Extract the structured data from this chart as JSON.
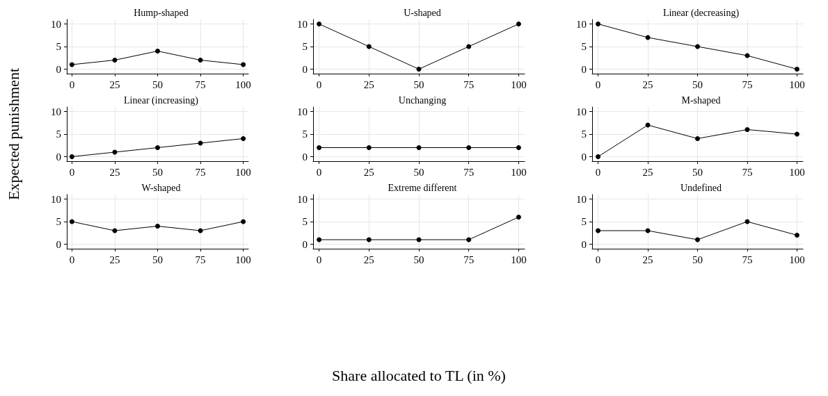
{
  "chart_data": [
    {
      "type": "line",
      "title": "Hump-shaped",
      "x": [
        0,
        25,
        50,
        75,
        100
      ],
      "values": [
        1,
        2,
        4,
        2,
        1
      ],
      "color": "#000000",
      "xlim": [
        -3,
        103
      ],
      "ylim": [
        -1,
        11
      ],
      "xticks": [
        0,
        25,
        50,
        75,
        100
      ],
      "yticks": [
        0,
        5,
        10
      ],
      "grid": true,
      "marker": "circle",
      "line_style": "solid"
    },
    {
      "type": "line",
      "title": "U-shaped",
      "x": [
        0,
        25,
        50,
        75,
        100
      ],
      "values": [
        10,
        5,
        0,
        5,
        10
      ],
      "color": "#000000",
      "xlim": [
        -3,
        103
      ],
      "ylim": [
        -1,
        11
      ],
      "xticks": [
        0,
        25,
        50,
        75,
        100
      ],
      "yticks": [
        0,
        5,
        10
      ],
      "grid": true,
      "marker": "circle",
      "line_style": "solid"
    },
    {
      "type": "line",
      "title": "Linear (decreasing)",
      "x": [
        0,
        25,
        50,
        75,
        100
      ],
      "values": [
        10,
        7,
        5,
        3,
        0
      ],
      "color": "#000000",
      "xlim": [
        -3,
        103
      ],
      "ylim": [
        -1,
        11
      ],
      "xticks": [
        0,
        25,
        50,
        75,
        100
      ],
      "yticks": [
        0,
        5,
        10
      ],
      "grid": true,
      "marker": "circle",
      "line_style": "solid"
    },
    {
      "type": "line",
      "title": "Linear (increasing)",
      "ylabel": "Expected punishment",
      "x": [
        0,
        25,
        50,
        75,
        100
      ],
      "values": [
        0,
        1,
        2,
        3,
        4
      ],
      "color": "#000000",
      "xlim": [
        -3,
        103
      ],
      "ylim": [
        -1,
        11
      ],
      "xticks": [
        0,
        25,
        50,
        75,
        100
      ],
      "yticks": [
        0,
        5,
        10
      ],
      "grid": true,
      "marker": "circle",
      "line_style": "solid"
    },
    {
      "type": "line",
      "title": "Unchanging",
      "x": [
        0,
        25,
        50,
        75,
        100
      ],
      "values": [
        2,
        2,
        2,
        2,
        2
      ],
      "color": "#000000",
      "xlim": [
        -3,
        103
      ],
      "ylim": [
        -1,
        11
      ],
      "xticks": [
        0,
        25,
        50,
        75,
        100
      ],
      "yticks": [
        0,
        5,
        10
      ],
      "grid": true,
      "marker": "circle",
      "line_style": "solid"
    },
    {
      "type": "line",
      "title": "M-shaped",
      "x": [
        0,
        25,
        50,
        75,
        100
      ],
      "values": [
        0,
        7,
        4,
        6,
        5
      ],
      "color": "#000000",
      "xlim": [
        -3,
        103
      ],
      "ylim": [
        -1,
        11
      ],
      "xticks": [
        0,
        25,
        50,
        75,
        100
      ],
      "yticks": [
        0,
        5,
        10
      ],
      "grid": true,
      "marker": "circle",
      "line_style": "solid"
    },
    {
      "type": "line",
      "title": "W-shaped",
      "x": [
        0,
        25,
        50,
        75,
        100
      ],
      "values": [
        5,
        3,
        4,
        3,
        5
      ],
      "color": "#000000",
      "xlim": [
        -3,
        103
      ],
      "ylim": [
        -1,
        11
      ],
      "xticks": [
        0,
        25,
        50,
        75,
        100
      ],
      "yticks": [
        0,
        5,
        10
      ],
      "grid": true,
      "marker": "circle",
      "line_style": "solid"
    },
    {
      "type": "line",
      "title": "Extreme different",
      "xlabel": "Share allocated to TL (in %)",
      "x": [
        0,
        25,
        50,
        75,
        100
      ],
      "values": [
        1,
        1,
        1,
        1,
        6
      ],
      "color": "#000000",
      "xlim": [
        -3,
        103
      ],
      "ylim": [
        -1,
        11
      ],
      "xticks": [
        0,
        25,
        50,
        75,
        100
      ],
      "yticks": [
        0,
        5,
        10
      ],
      "grid": true,
      "marker": "circle",
      "line_style": "solid"
    },
    {
      "type": "line",
      "title": "Undefined",
      "x": [
        0,
        25,
        50,
        75,
        100
      ],
      "values": [
        3,
        3,
        1,
        5,
        2
      ],
      "color": "#000000",
      "xlim": [
        -3,
        103
      ],
      "ylim": [
        -1,
        11
      ],
      "xticks": [
        0,
        25,
        50,
        75,
        100
      ],
      "yticks": [
        0,
        5,
        10
      ],
      "grid": true,
      "marker": "circle",
      "line_style": "solid"
    }
  ]
}
